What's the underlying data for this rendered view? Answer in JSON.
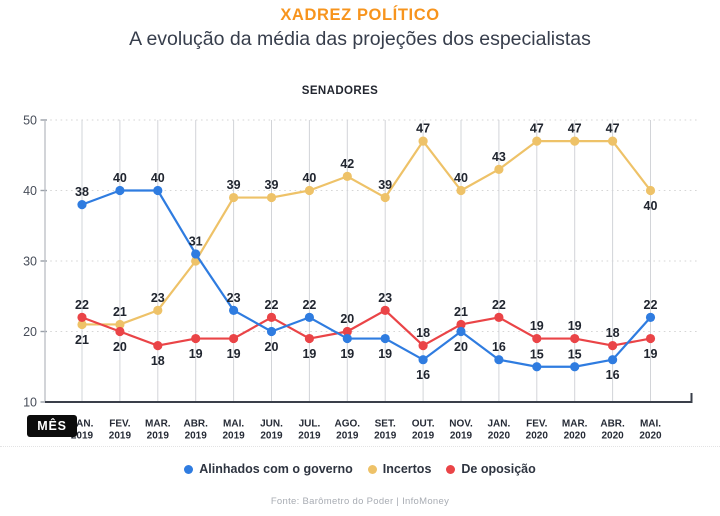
{
  "header": {
    "title": "XADREZ POLÍTICO",
    "subtitle": "A evolução da média das projeções dos especialistas"
  },
  "chart_data": {
    "type": "line",
    "title": "SENADORES",
    "x_axis_label": "MÊS",
    "categories": [
      "JAN. 2019",
      "FEV. 2019",
      "MAR. 2019",
      "ABR. 2019",
      "MAI. 2019",
      "JUN. 2019",
      "JUL. 2019",
      "AGO. 2019",
      "SET. 2019",
      "OUT. 2019",
      "NOV. 2019",
      "JAN. 2020",
      "FEV. 2020",
      "MAR. 2020",
      "ABR. 2020",
      "MAI. 2020"
    ],
    "y_axis": {
      "min": 10,
      "max": 50,
      "step": 10,
      "ticks": [
        50,
        40,
        30,
        20,
        10
      ]
    },
    "grid": true,
    "legend_position": "bottom",
    "series": [
      {
        "name": "Incertos",
        "color": "#eec268",
        "values": [
          21,
          21,
          23,
          30,
          39,
          39,
          40,
          42,
          39,
          47,
          40,
          43,
          47,
          47,
          47,
          40
        ],
        "label_pos": [
          "below",
          "above",
          "above",
          "hidden",
          "above",
          "above",
          "above",
          "above",
          "above",
          "above",
          "above",
          "above",
          "above",
          "above",
          "above",
          "below"
        ]
      },
      {
        "name": "De oposição",
        "color": "#ea4447",
        "values": [
          22,
          20,
          18,
          19,
          19,
          22,
          19,
          20,
          23,
          18,
          21,
          22,
          19,
          19,
          18,
          19
        ],
        "label_pos": [
          "above",
          "below",
          "below",
          "below",
          "below",
          "above",
          "below",
          "above",
          "above",
          "above",
          "above",
          "above",
          "above",
          "above",
          "above",
          "below"
        ]
      },
      {
        "name": "Alinhados com o governo",
        "color": "#2f7ce0",
        "values": [
          38,
          40,
          40,
          31,
          23,
          20,
          22,
          19,
          19,
          16,
          20,
          16,
          15,
          15,
          16,
          22
        ],
        "label_pos": [
          "above",
          "above",
          "above",
          "above",
          "above",
          "below",
          "above",
          "below",
          "below",
          "below",
          "below",
          "above",
          "above",
          "above",
          "below",
          "above"
        ]
      }
    ],
    "legend_order": [
      "Alinhados com o governo",
      "Incertos",
      "De oposição"
    ],
    "colors": {
      "accent_title": "#f7941d",
      "axis_dark": "#3a3f4a",
      "grid_vertical": "#d2d4d8",
      "grid_dotted": "#d6d6d6",
      "label_text": "#20252f"
    }
  },
  "footer": {
    "source": "Fonte: Barômetro do Poder | InfoMoney"
  }
}
